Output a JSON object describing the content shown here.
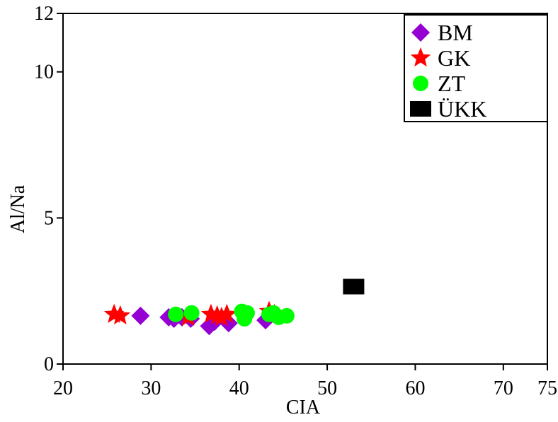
{
  "chart_data": {
    "type": "scatter",
    "xlabel": "CIA",
    "ylabel": "Al/Na",
    "xlim": [
      20,
      75
    ],
    "ylim": [
      0,
      12
    ],
    "x_ticks": [
      20,
      30,
      40,
      50,
      60,
      70,
      75
    ],
    "y_ticks": [
      0,
      5,
      10,
      12
    ],
    "grid": false,
    "legend_position": "top-right",
    "series": [
      {
        "name": "BM",
        "marker": "diamond",
        "color": "#9400D3",
        "points": [
          {
            "x": 28.8,
            "y": 1.65
          },
          {
            "x": 32.0,
            "y": 1.6
          },
          {
            "x": 32.6,
            "y": 1.55
          },
          {
            "x": 33.5,
            "y": 1.6
          },
          {
            "x": 34.5,
            "y": 1.55
          },
          {
            "x": 36.6,
            "y": 1.3
          },
          {
            "x": 37.2,
            "y": 1.45
          },
          {
            "x": 38.8,
            "y": 1.4
          },
          {
            "x": 43.0,
            "y": 1.5
          }
        ]
      },
      {
        "name": "GK",
        "marker": "star",
        "color": "#FF0000",
        "points": [
          {
            "x": 25.8,
            "y": 1.7
          },
          {
            "x": 26.5,
            "y": 1.65
          },
          {
            "x": 34.2,
            "y": 1.6
          },
          {
            "x": 36.8,
            "y": 1.7
          },
          {
            "x": 37.5,
            "y": 1.65
          },
          {
            "x": 38.0,
            "y": 1.6
          },
          {
            "x": 38.6,
            "y": 1.7
          },
          {
            "x": 43.4,
            "y": 1.8
          },
          {
            "x": 44.0,
            "y": 1.7
          }
        ]
      },
      {
        "name": "ZT",
        "marker": "circle",
        "color": "#00FF00",
        "points": [
          {
            "x": 32.8,
            "y": 1.7
          },
          {
            "x": 34.6,
            "y": 1.75
          },
          {
            "x": 40.3,
            "y": 1.8
          },
          {
            "x": 40.6,
            "y": 1.55
          },
          {
            "x": 40.9,
            "y": 1.75
          },
          {
            "x": 43.4,
            "y": 1.7
          },
          {
            "x": 43.9,
            "y": 1.75
          },
          {
            "x": 44.5,
            "y": 1.6
          },
          {
            "x": 45.4,
            "y": 1.65
          }
        ]
      },
      {
        "name": "ÜKK",
        "marker": "square",
        "color": "#000000",
        "points": [
          {
            "x": 53.0,
            "y": 2.65
          }
        ]
      }
    ]
  }
}
